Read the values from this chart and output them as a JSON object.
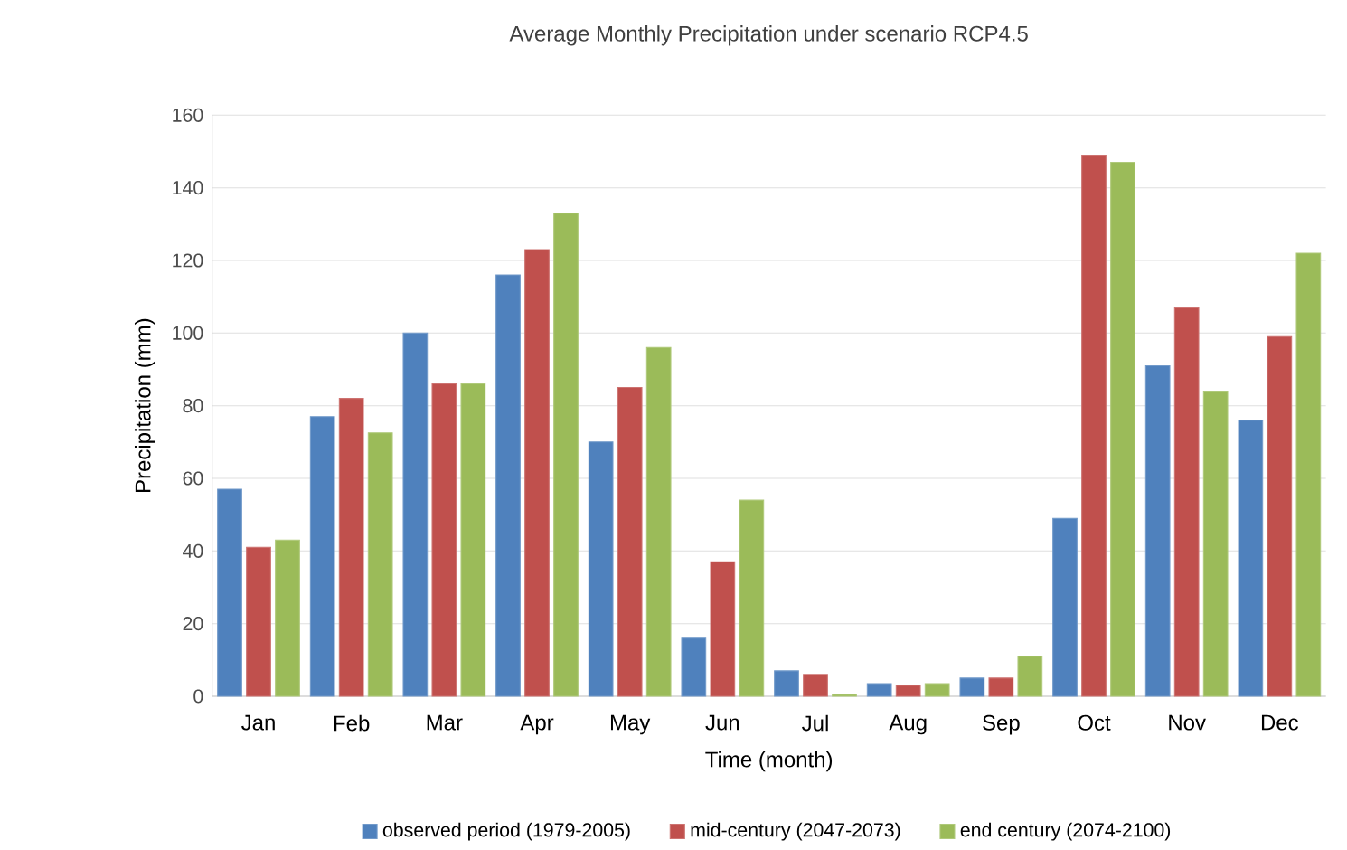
{
  "chart_data": {
    "type": "bar",
    "title": "Average Monthly Precipitation under scenario RCP4.5",
    "xlabel": "Time (month)",
    "ylabel": "Precipitation  (mm)",
    "categories": [
      "Jan",
      "Feb",
      "Mar",
      "Apr",
      "May",
      "Jun",
      "Jul",
      "Aug",
      "Sep",
      "Oct",
      "Nov",
      "Dec"
    ],
    "series": [
      {
        "name": "observed period (1979-2005)",
        "color": "#4f81bd",
        "values": [
          57,
          77,
          100,
          116,
          70,
          16,
          7,
          3.5,
          5,
          49,
          91,
          76
        ]
      },
      {
        "name": "mid-century (2047-2073)",
        "color": "#c0504d",
        "values": [
          41,
          82,
          86,
          123,
          85,
          37,
          6,
          3,
          5,
          149,
          107,
          99
        ]
      },
      {
        "name": "end century (2074-2100)",
        "color": "#9bbb59",
        "values": [
          43,
          72.5,
          86,
          133,
          96,
          54,
          0.5,
          3.5,
          11,
          147,
          84,
          122
        ]
      }
    ],
    "ylim": [
      0,
      160
    ],
    "yticks": [
      0,
      20,
      40,
      60,
      80,
      100,
      120,
      140,
      160
    ],
    "grid": "y",
    "legend": "bottom"
  }
}
